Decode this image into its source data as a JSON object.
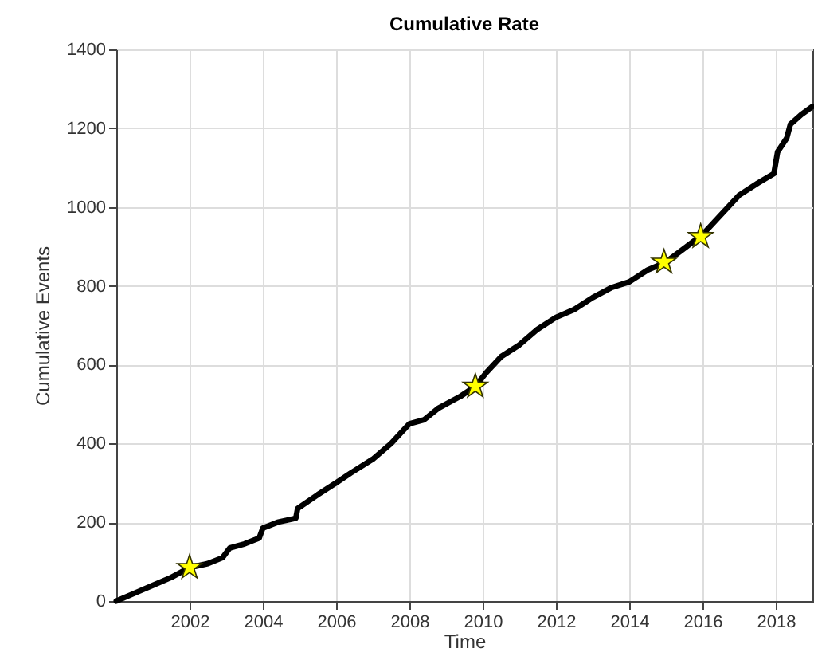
{
  "chart_data": {
    "type": "line",
    "title": "Cumulative Rate",
    "xlabel": "Time",
    "ylabel": "Cumulative Events",
    "xlim": [
      2000,
      2019
    ],
    "xticks": [
      2002,
      2004,
      2006,
      2008,
      2010,
      2012,
      2014,
      2016,
      2018
    ],
    "ylim": [
      0,
      1400
    ],
    "yticks": [
      0,
      200,
      400,
      600,
      800,
      1000,
      1200,
      1400
    ],
    "grid": true,
    "series": [
      {
        "type": "line",
        "color": "#000000",
        "line_style": "solid",
        "marker": "none",
        "x": [
          2000.0,
          2000.5,
          2001,
          2001.5,
          2002,
          2002.5,
          2002.9,
          2003.1,
          2003.5,
          2003.9,
          2004.0,
          2004.4,
          2004.9,
          2004.95,
          2005.5,
          2006,
          2006.4,
          2007,
          2007.5,
          2008,
          2008.4,
          2008.8,
          2009.4,
          2009.8,
          2010.1,
          2010.5,
          2011,
          2011.5,
          2012,
          2012.5,
          2013,
          2013.5,
          2014,
          2014.5,
          2015,
          2015.5,
          2016,
          2016.5,
          2017,
          2017.5,
          2017.95,
          2018.05,
          2018.3,
          2018.4,
          2018.7,
          2019
        ],
        "values": [
          0,
          20,
          40,
          60,
          85,
          95,
          110,
          135,
          145,
          160,
          185,
          200,
          210,
          235,
          270,
          300,
          325,
          360,
          400,
          450,
          460,
          490,
          520,
          545,
          580,
          620,
          650,
          690,
          720,
          740,
          770,
          795,
          810,
          840,
          860,
          895,
          930,
          980,
          1030,
          1060,
          1085,
          1140,
          1175,
          1210,
          1235,
          1255
        ]
      },
      {
        "type": "scatter",
        "color": "#ffff00",
        "marker": "star",
        "x": [
          2002,
          2009.8,
          2014.95,
          2015.95
        ],
        "values": [
          85,
          545,
          860,
          925
        ]
      }
    ]
  }
}
